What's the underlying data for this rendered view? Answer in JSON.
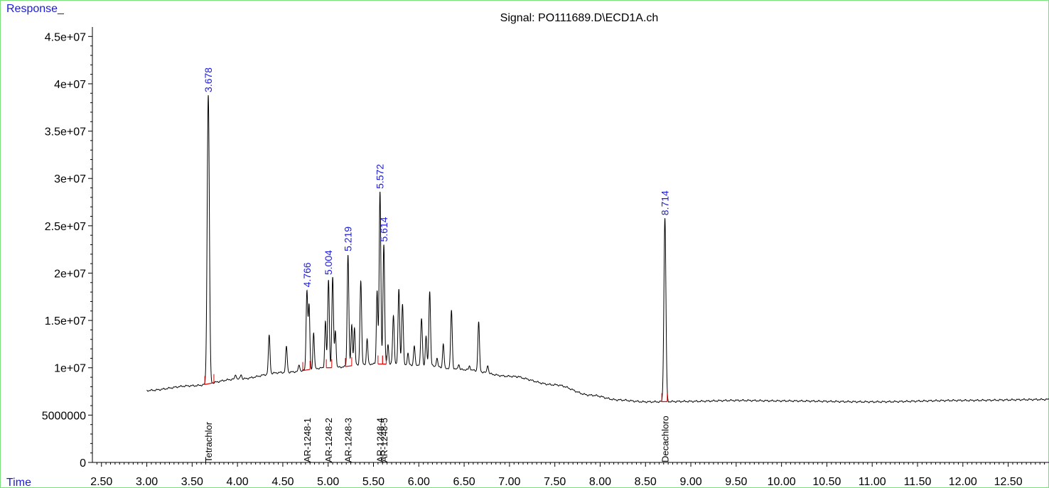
{
  "title": "Signal: PO111689.D\\ECD1A.ch",
  "ylabel": "Response_",
  "xlabel": "Time",
  "chart_data": {
    "type": "line",
    "title": "Signal: PO111689.D\\ECD1A.ch",
    "xlabel": "Time",
    "ylabel": "Response_",
    "xlim": [
      2.4,
      12.95
    ],
    "ylim": [
      0,
      46000000
    ],
    "x_ticks": [
      2.5,
      3.0,
      3.5,
      4.0,
      4.5,
      5.0,
      5.5,
      6.0,
      6.5,
      7.0,
      7.5,
      8.0,
      8.5,
      9.0,
      9.5,
      10.0,
      10.5,
      11.0,
      11.5,
      12.0,
      12.5
    ],
    "x_tick_labels": [
      "2.50",
      "3.00",
      "3.50",
      "4.00",
      "4.50",
      "5.00",
      "5.50",
      "6.00",
      "6.50",
      "7.00",
      "7.50",
      "8.00",
      "8.50",
      "9.00",
      "9.50",
      "10.00",
      "10.50",
      "11.00",
      "11.50",
      "12.00",
      "12.50"
    ],
    "y_ticks": [
      0,
      5000000,
      10000000,
      15000000,
      20000000,
      25000000,
      30000000,
      35000000,
      40000000,
      45000000
    ],
    "y_tick_labels": [
      "0",
      "5000000",
      "1e+07",
      "1.5e+07",
      "2e+07",
      "2.5e+07",
      "3e+07",
      "3.5e+07",
      "4e+07",
      "4.5e+07"
    ],
    "baseline": [
      [
        3.0,
        7600000
      ],
      [
        3.5,
        8100000
      ],
      [
        4.0,
        8800000
      ],
      [
        4.5,
        9500000
      ],
      [
        5.0,
        10000000
      ],
      [
        5.5,
        10400000
      ],
      [
        6.0,
        10300000
      ],
      [
        6.5,
        9800000
      ],
      [
        7.0,
        9100000
      ],
      [
        7.5,
        8200000
      ],
      [
        7.9,
        7100000
      ],
      [
        8.2,
        6600000
      ],
      [
        8.5,
        6400000
      ],
      [
        9.0,
        6450000
      ],
      [
        9.5,
        6550000
      ],
      [
        10.0,
        6500000
      ],
      [
        11.0,
        6400000
      ],
      [
        12.0,
        6550000
      ],
      [
        12.95,
        6650000
      ]
    ],
    "peaks": [
      {
        "rt": 3.678,
        "height": 38800000,
        "width": 0.012
      },
      {
        "rt": 3.98,
        "height": 9300000,
        "width": 0.008
      },
      {
        "rt": 4.04,
        "height": 9300000,
        "width": 0.008
      },
      {
        "rt": 4.35,
        "height": 13400000,
        "width": 0.009
      },
      {
        "rt": 4.54,
        "height": 12200000,
        "width": 0.009
      },
      {
        "rt": 4.68,
        "height": 10300000,
        "width": 0.008
      },
      {
        "rt": 4.766,
        "height": 18200000,
        "width": 0.009
      },
      {
        "rt": 4.79,
        "height": 16500000,
        "width": 0.008
      },
      {
        "rt": 4.84,
        "height": 13700000,
        "width": 0.008
      },
      {
        "rt": 4.97,
        "height": 14900000,
        "width": 0.008
      },
      {
        "rt": 5.004,
        "height": 19300000,
        "width": 0.009
      },
      {
        "rt": 5.05,
        "height": 19500000,
        "width": 0.009
      },
      {
        "rt": 5.08,
        "height": 13900000,
        "width": 0.008
      },
      {
        "rt": 5.219,
        "height": 22000000,
        "width": 0.009
      },
      {
        "rt": 5.26,
        "height": 14500000,
        "width": 0.008
      },
      {
        "rt": 5.29,
        "height": 14200000,
        "width": 0.008
      },
      {
        "rt": 5.36,
        "height": 19200000,
        "width": 0.009
      },
      {
        "rt": 5.43,
        "height": 13000000,
        "width": 0.008
      },
      {
        "rt": 5.54,
        "height": 18200000,
        "width": 0.008
      },
      {
        "rt": 5.572,
        "height": 28600000,
        "width": 0.009
      },
      {
        "rt": 5.614,
        "height": 23000000,
        "width": 0.009
      },
      {
        "rt": 5.66,
        "height": 12500000,
        "width": 0.008
      },
      {
        "rt": 5.72,
        "height": 15500000,
        "width": 0.009
      },
      {
        "rt": 5.78,
        "height": 18300000,
        "width": 0.009
      },
      {
        "rt": 5.82,
        "height": 16700000,
        "width": 0.009
      },
      {
        "rt": 5.88,
        "height": 11500000,
        "width": 0.008
      },
      {
        "rt": 5.95,
        "height": 12300000,
        "width": 0.008
      },
      {
        "rt": 6.03,
        "height": 15200000,
        "width": 0.009
      },
      {
        "rt": 6.08,
        "height": 13300000,
        "width": 0.008
      },
      {
        "rt": 6.12,
        "height": 18100000,
        "width": 0.009
      },
      {
        "rt": 6.2,
        "height": 11000000,
        "width": 0.008
      },
      {
        "rt": 6.27,
        "height": 12500000,
        "width": 0.008
      },
      {
        "rt": 6.36,
        "height": 16100000,
        "width": 0.009
      },
      {
        "rt": 6.44,
        "height": 10400000,
        "width": 0.008
      },
      {
        "rt": 6.56,
        "height": 10200000,
        "width": 0.008
      },
      {
        "rt": 6.66,
        "height": 14800000,
        "width": 0.009
      },
      {
        "rt": 6.76,
        "height": 10300000,
        "width": 0.008
      },
      {
        "rt": 7.1,
        "height": 9100000,
        "width": 0.008
      },
      {
        "rt": 8.714,
        "height": 25800000,
        "width": 0.011
      }
    ],
    "peak_labels": [
      {
        "rt": 3.678,
        "label": "3.678",
        "height": 38800000
      },
      {
        "rt": 4.766,
        "label": "4.766",
        "height": 18200000
      },
      {
        "rt": 5.004,
        "label": "5.004",
        "height": 19500000
      },
      {
        "rt": 5.219,
        "label": "5.219",
        "height": 22000000
      },
      {
        "rt": 5.572,
        "label": "5.572",
        "height": 28600000
      },
      {
        "rt": 5.614,
        "label": "5.614",
        "height": 23000000
      },
      {
        "rt": 8.714,
        "label": "8.714",
        "height": 25800000
      }
    ],
    "compounds": [
      {
        "rt": 3.678,
        "name": "Tetrachlor"
      },
      {
        "rt": 4.766,
        "name": "AR-1248-1"
      },
      {
        "rt": 5.004,
        "name": "AR-1248-2"
      },
      {
        "rt": 5.219,
        "name": "AR-1248-3"
      },
      {
        "rt": 5.572,
        "name": "AR-1248-4"
      },
      {
        "rt": 5.614,
        "name": "AR-1248-5"
      },
      {
        "rt": 8.714,
        "name": "Decachloro"
      }
    ],
    "integration_marks": [
      {
        "x1": 3.64,
        "x2": 3.74
      },
      {
        "x1": 4.72,
        "x2": 4.8
      },
      {
        "x1": 4.98,
        "x2": 5.04
      },
      {
        "x1": 5.19,
        "x2": 5.26
      },
      {
        "x1": 5.55,
        "x2": 5.6
      },
      {
        "x1": 5.6,
        "x2": 5.64
      },
      {
        "x1": 8.68,
        "x2": 8.74
      }
    ],
    "colors": {
      "trace": "#000000",
      "peak_label": "#1a1adb",
      "integration": "#e00000",
      "frame": "#7be07b"
    }
  }
}
